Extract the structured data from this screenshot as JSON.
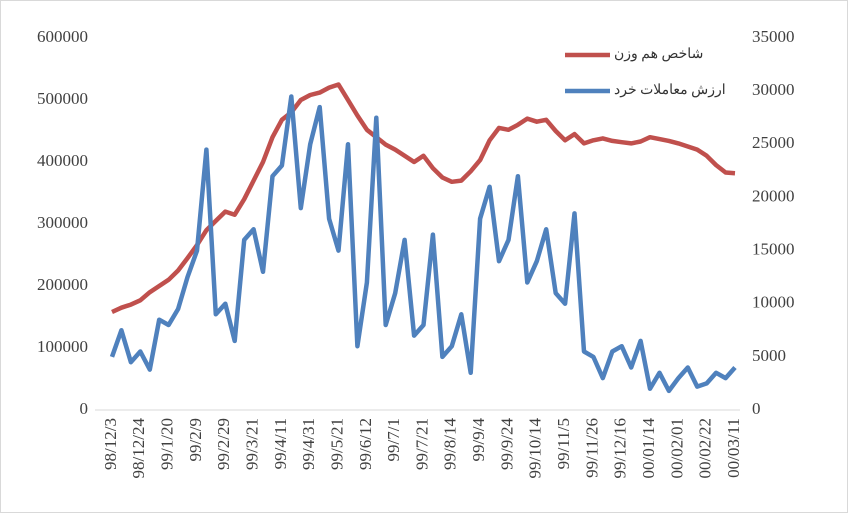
{
  "chart_data": {
    "type": "line",
    "categories": [
      "98/12/3",
      null,
      null,
      "98/12/24",
      null,
      null,
      "99/1/20",
      null,
      null,
      "99/2/9",
      null,
      null,
      "99/2/29",
      null,
      null,
      "99/3/21",
      null,
      null,
      "99/4/11",
      null,
      null,
      "99/4/31",
      null,
      null,
      "99/5/21",
      null,
      null,
      "99/6/12",
      null,
      null,
      "99/7/1",
      null,
      null,
      "99/7/21",
      null,
      null,
      "99/8/14",
      null,
      null,
      "99/9/4",
      null,
      null,
      "99/9/24",
      null,
      null,
      "99/10/14",
      null,
      null,
      "99/11/5",
      null,
      null,
      "99/11/26",
      null,
      null,
      "99/12/16",
      null,
      null,
      "00/01/14",
      null,
      null,
      "00/02/01",
      null,
      null,
      "00/02/22",
      null,
      null,
      "00/03/11"
    ],
    "series": [
      {
        "name": "شاخص هم وزن",
        "color": "#c0504d",
        "values": [
          158000,
          165000,
          170000,
          177000,
          190000,
          200000,
          210000,
          225000,
          245000,
          266000,
          290000,
          305000,
          320000,
          315000,
          340000,
          370000,
          400000,
          440000,
          468000,
          480000,
          500000,
          508000,
          512000,
          520000,
          525000,
          500000,
          475000,
          452000,
          440000,
          428000,
          420000,
          410000,
          400000,
          410000,
          390000,
          375000,
          368000,
          370000,
          385000,
          403000,
          435000,
          455000,
          452000,
          460000,
          470000,
          465000,
          468000,
          450000,
          435000,
          445000,
          430000,
          435000,
          438000,
          434000,
          432000,
          430000,
          433000,
          440000,
          437000,
          434000,
          430000,
          425000,
          420000,
          410000,
          395000,
          383000,
          382000
        ]
      },
      {
        "name": "ارزش معاملات خرد",
        "color": "#4f81bd",
        "axis": "y2",
        "values": [
          5000,
          7500,
          4500,
          5500,
          3800,
          8500,
          8000,
          9500,
          12500,
          15000,
          24500,
          9000,
          10000,
          6500,
          16000,
          17000,
          13000,
          22000,
          23000,
          29500,
          19000,
          25000,
          28500,
          18000,
          15000,
          25000,
          6000,
          12000,
          27500,
          8000,
          11000,
          16000,
          7000,
          8000,
          16500,
          5000,
          6000,
          9000,
          3500,
          18000,
          21000,
          14000,
          16000,
          22000,
          12000,
          14000,
          17000,
          11000,
          10000,
          18500,
          5500,
          5000,
          3000,
          5500,
          6000,
          4000,
          6500,
          2000,
          3500,
          1800,
          3000,
          4000,
          2200,
          2500,
          3500,
          3000,
          4000
        ]
      }
    ],
    "ylim": [
      0,
      600000
    ],
    "yticks": [
      0,
      100000,
      200000,
      300000,
      400000,
      500000,
      600000
    ],
    "y2lim": [
      0,
      35000
    ],
    "y2ticks": [
      0,
      5000,
      10000,
      15000,
      20000,
      25000,
      30000,
      35000
    ],
    "grid": false,
    "legend": "top-right"
  }
}
